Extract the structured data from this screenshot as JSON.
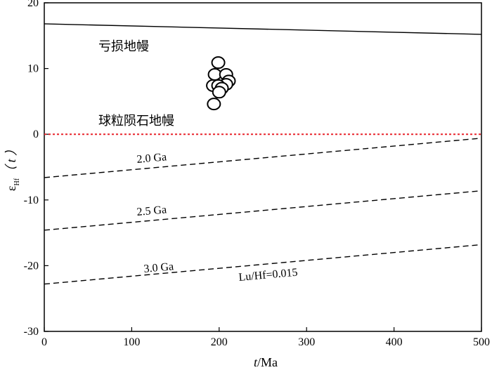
{
  "chart_data": {
    "type": "scatter",
    "x_label": {
      "italic": "t",
      "rest": "/Ma"
    },
    "y_label": {
      "symbol": "ε",
      "subscript": "Hf",
      "paren": "（ t ）"
    },
    "xlim": [
      0,
      500
    ],
    "xticks": [
      0,
      100,
      200,
      300,
      400,
      500
    ],
    "ylim": [
      -30,
      20
    ],
    "yticks": [
      -30,
      -20,
      -10,
      0,
      10,
      20
    ],
    "series": [
      {
        "color": "#000000",
        "x": [
          199,
          195,
          208,
          211,
          208,
          193,
          199,
          203,
          200,
          194
        ],
        "values": [
          10.9,
          9.1,
          9.1,
          8.1,
          7.6,
          7.4,
          7.4,
          7.0,
          6.4,
          4.6
        ]
      }
    ],
    "reference_lines": [
      {
        "label": "亏损地幔",
        "style": "solid",
        "color": "#000000",
        "x": [
          0,
          500
        ],
        "values": [
          16.8,
          15.2
        ]
      },
      {
        "label": "球粒陨石地幔",
        "style": "dotted",
        "color": "#e8242b",
        "x": [
          0,
          500
        ],
        "values": [
          0,
          0
        ]
      },
      {
        "label": "2.0 Ga",
        "style": "dashed",
        "color": "#000000",
        "x": [
          0,
          500
        ],
        "values": [
          -6.6,
          -0.6
        ]
      },
      {
        "label": "2.5 Ga",
        "style": "dashed",
        "color": "#000000",
        "x": [
          0,
          500
        ],
        "values": [
          -14.6,
          -8.6
        ]
      },
      {
        "label": "3.0 Ga",
        "style": "dashed",
        "color": "#000000",
        "x": [
          0,
          500
        ],
        "values": [
          -22.8,
          -16.8
        ]
      }
    ],
    "annotations": [
      "Lu/Hf=0.015"
    ]
  }
}
